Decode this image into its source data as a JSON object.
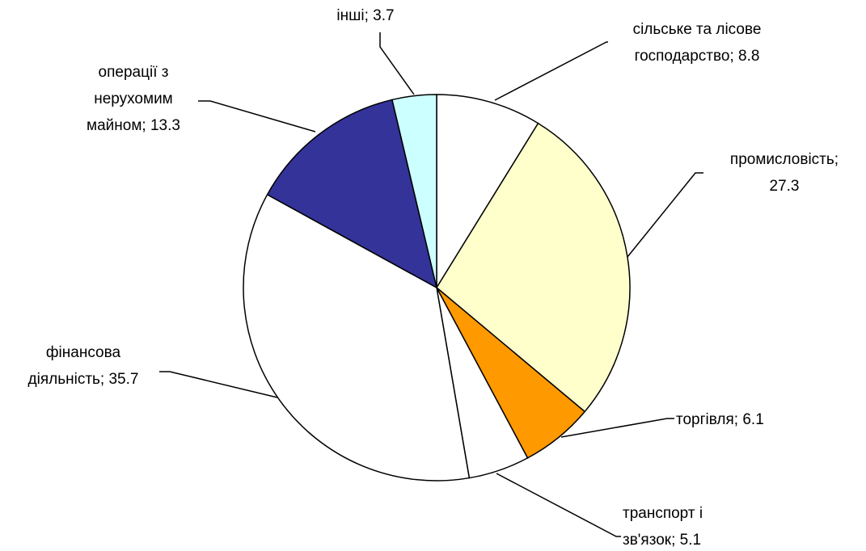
{
  "chart_data": {
    "type": "pie",
    "labels": [
      [
        "сільське та лісове",
        "господарство; 8.8"
      ],
      [
        "промисловість;",
        "27.3"
      ],
      [
        "торгівля; 6.1"
      ],
      [
        "транспорт і",
        "зв'язок; 5.1"
      ],
      [
        "фінансова",
        "діяльність; 35.7"
      ],
      [
        "операції з",
        "нерухомим",
        "майном; 13.3"
      ],
      [
        "інші; 3.7"
      ]
    ],
    "values": [
      8.8,
      27.3,
      6.1,
      5.1,
      35.7,
      13.3,
      3.7
    ],
    "colors": [
      "#FFFFFF",
      "#FFFFCC",
      "#FF9900",
      "#FFFFFF",
      "#FFFFFF",
      "#333399",
      "#CCFFFF"
    ]
  }
}
